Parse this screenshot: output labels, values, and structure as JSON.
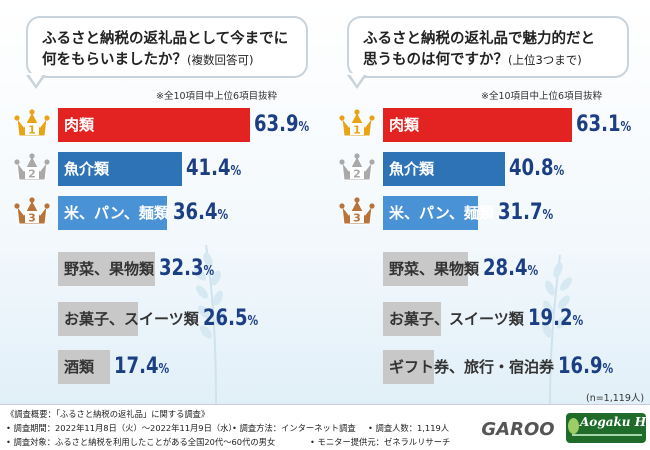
{
  "chart_data": [
    {
      "type": "bar",
      "orientation": "horizontal",
      "title_lines": [
        "ふるさと納税の返礼品として今までに",
        "何をもらいましたか？"
      ],
      "subtitle": "(複数回答可)",
      "note": "※全10項目中上位6項目抜粋",
      "categories": [
        "肉類",
        "魚介類",
        "米、パン、麺類",
        "野菜、果物類",
        "お菓子、スイーツ類",
        "酒類"
      ],
      "values": [
        63.9,
        41.4,
        36.4,
        32.3,
        26.5,
        17.4
      ],
      "labels": [
        {
          "big": "63.9",
          "small": "%"
        },
        {
          "big": "41.4",
          "small": "%"
        },
        {
          "big": "36.4",
          "small": "%"
        },
        {
          "big": "32.3",
          "small": "%"
        },
        {
          "big": "26.5",
          "small": "%"
        },
        {
          "big": "17.4",
          "small": "%"
        }
      ],
      "ranks": [
        "1",
        "2",
        "3"
      ],
      "unit": "%"
    },
    {
      "type": "bar",
      "orientation": "horizontal",
      "title_lines": [
        "ふるさと納税の返礼品で魅力的だと",
        "思うものは何ですか？"
      ],
      "subtitle": "(上位3つまで)",
      "note": "※全10項目中上位6項目抜粋",
      "categories": [
        "肉類",
        "魚介類",
        "米、パン、麺類",
        "野菜、果物類",
        "お菓子、スイーツ類",
        "ギフト券、旅行・宿泊券"
      ],
      "values": [
        63.1,
        40.8,
        31.7,
        28.4,
        19.2,
        16.9
      ],
      "labels": [
        {
          "big": "63.1",
          "small": "%"
        },
        {
          "big": "40.8",
          "small": "%"
        },
        {
          "big": "31.7",
          "small": "%"
        },
        {
          "big": "28.4",
          "small": "%"
        },
        {
          "big": "19.2",
          "small": "%"
        },
        {
          "big": "16.9",
          "small": "%"
        }
      ],
      "ranks": [
        "1",
        "2",
        "3"
      ],
      "unit": "%"
    }
  ],
  "colors": {
    "rank1": "#e32322",
    "rank2": "#2f73b7",
    "rank3": "#4a92d6",
    "other": "#c8c8c8",
    "crown_gold": "#e8a317",
    "crown_silver": "#a9a9a9",
    "crown_bronze": "#b8733a",
    "pct_text": "#1c3f84"
  },
  "sample_note": "(n=1,119人)",
  "footer": {
    "survey_title": "《調査概要：「ふるさと納税の返礼品」に関する調査》",
    "period": "• 調査期間：2022年11月8日（火）〜2022年11月9日（水）",
    "method": "• 調査方法：インターネット調査",
    "count": "• 調査人数：1,119人",
    "target": "• 調査対象：ふるさと納税を利用したことがある全国20代〜60代の男女",
    "provider": "• モニター提供元：ゼネラルリサーチ",
    "logo1_text": "GAROO",
    "logo2_text": "Aogaku Hicon"
  }
}
